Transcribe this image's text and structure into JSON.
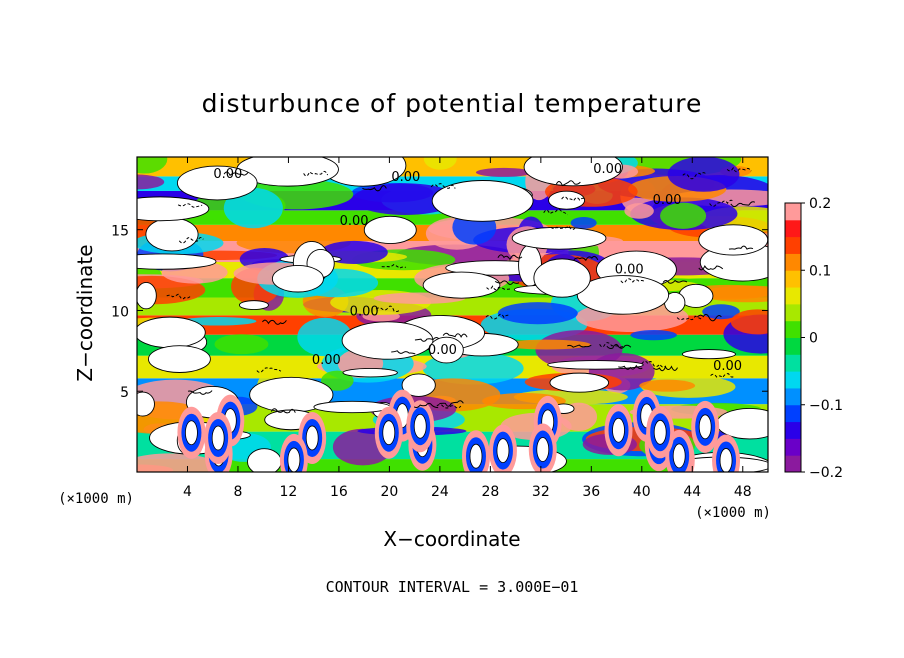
{
  "chart_data": {
    "type": "heatmap",
    "title": "disturbunce of potential temperature",
    "xlabel": "X−coordinate",
    "ylabel": "Z−coordinate",
    "x_unit": "(×1000 m)",
    "y_unit": "(×1000 m)",
    "xlim": [
      0,
      50
    ],
    "ylim": [
      0,
      19.5
    ],
    "x_ticks": [
      4,
      8,
      12,
      16,
      20,
      24,
      28,
      32,
      36,
      40,
      44,
      48
    ],
    "x_tick_labels": [
      "4",
      "8",
      "12",
      "16",
      "20",
      "24",
      "28",
      "32",
      "36",
      "40",
      "44",
      "48"
    ],
    "y_ticks": [
      5,
      10,
      15
    ],
    "y_tick_labels": [
      "5",
      "10",
      "15"
    ],
    "colorbar": {
      "range": [
        -0.2,
        0.2
      ],
      "ticks": [
        0.2,
        0.1,
        0,
        -0.1,
        -0.2
      ],
      "tick_labels": [
        "0.2",
        "0.1",
        "0",
        "−0.1",
        "−0.2"
      ],
      "colors": [
        "#8b1a9e",
        "#6a00c8",
        "#2a00e8",
        "#0040ff",
        "#0090ff",
        "#00d8f0",
        "#00e0a0",
        "#00d840",
        "#40e000",
        "#a8e800",
        "#e8e800",
        "#ffc000",
        "#ff8800",
        "#ff4000",
        "#ff1818",
        "#ff9a9a"
      ]
    },
    "contour_interval_text": "CONTOUR INTERVAL = 3.000E−01",
    "contour_labels": [
      {
        "text": "0.00",
        "x": 7.2,
        "z": 18.2
      },
      {
        "text": "0.00",
        "x": 21.3,
        "z": 18.0
      },
      {
        "text": "0.00",
        "x": 37.3,
        "z": 18.5
      },
      {
        "text": "0.00",
        "x": 42.0,
        "z": 16.6
      },
      {
        "text": "0.00",
        "x": 17.2,
        "z": 15.3
      },
      {
        "text": "0.00",
        "x": 39.0,
        "z": 12.3
      },
      {
        "text": "0.00",
        "x": 18.0,
        "z": 9.7
      },
      {
        "text": "0.00",
        "x": 24.2,
        "z": 7.3
      },
      {
        "text": "0.00",
        "x": 15.0,
        "z": 6.7
      },
      {
        "text": "0.00",
        "x": 46.8,
        "z": 6.3
      }
    ],
    "bands": [
      {
        "z": [
          0.0,
          0.8
        ],
        "value": 0.02
      },
      {
        "z": [
          0.8,
          2.5
        ],
        "value": -0.05
      },
      {
        "z": [
          2.5,
          4.2
        ],
        "value": 0.04
      },
      {
        "z": [
          4.2,
          5.8
        ],
        "value": -0.08
      },
      {
        "z": [
          5.8,
          7.2
        ],
        "value": 0.06
      },
      {
        "z": [
          7.2,
          8.5
        ],
        "value": -0.02
      },
      {
        "z": [
          8.5,
          9.7
        ],
        "value": 0.15
      },
      {
        "z": [
          9.7,
          10.8
        ],
        "value": 0.03
      },
      {
        "z": [
          10.8,
          12.0
        ],
        "value": 0.0
      },
      {
        "z": [
          12.0,
          13.0
        ],
        "value": 0.05
      },
      {
        "z": [
          13.0,
          14.3
        ],
        "value": 0.19
      },
      {
        "z": [
          14.3,
          15.3
        ],
        "value": 0.12
      },
      {
        "z": [
          15.3,
          16.2
        ],
        "value": 0.02
      },
      {
        "z": [
          16.2,
          17.4
        ],
        "value": -0.14
      },
      {
        "z": [
          17.4,
          18.3
        ],
        "value": -0.06
      },
      {
        "z": [
          18.3,
          19.5
        ],
        "value": 0.08
      }
    ]
  }
}
